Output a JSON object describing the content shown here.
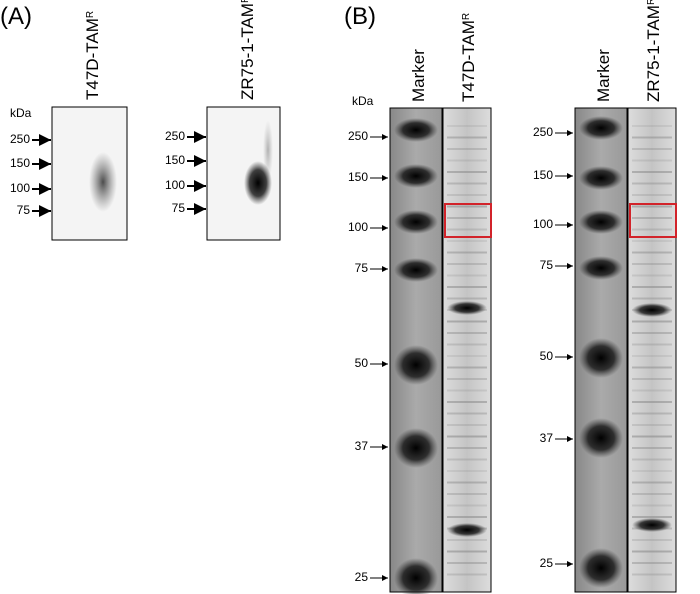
{
  "panel_a": {
    "label": "(A)",
    "blots": [
      {
        "lane": "T47D-TAM",
        "sup": "R",
        "unit": "kDa",
        "markers": [
          250,
          150,
          100,
          75
        ]
      },
      {
        "lane": "ZR75-1-TAM",
        "sup": "R",
        "markers": [
          250,
          150,
          100,
          75
        ]
      }
    ]
  },
  "panel_b": {
    "label": "(B)",
    "gels": [
      {
        "lanes": [
          "Marker",
          "T47D-TAM"
        ],
        "sup": "R",
        "unit": "kDa",
        "markers": [
          250,
          150,
          100,
          75,
          50,
          37,
          25
        ]
      },
      {
        "lanes": [
          "Marker",
          "ZR75-1-TAM"
        ],
        "sup": "R",
        "markers": [
          250,
          150,
          100,
          75,
          50,
          37,
          25
        ]
      }
    ]
  }
}
